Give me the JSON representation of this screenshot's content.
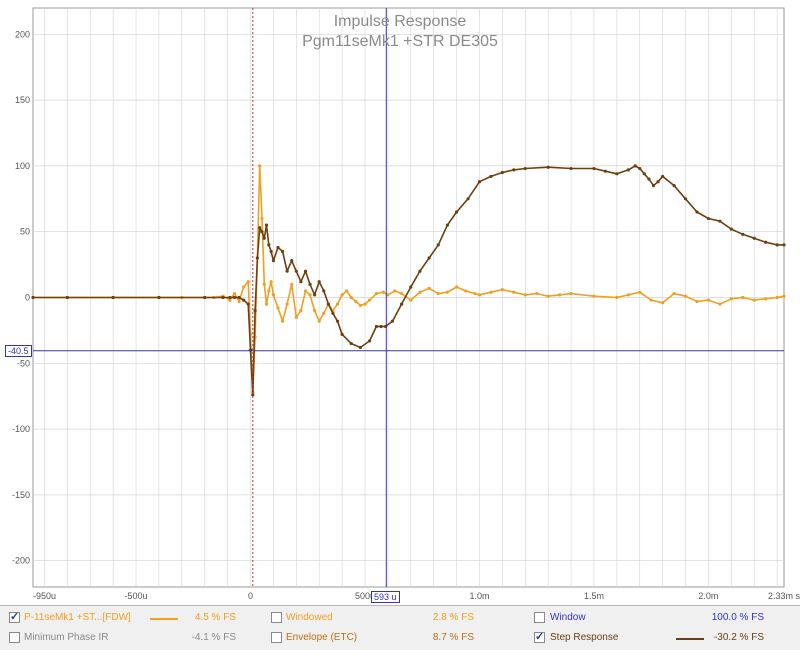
{
  "chart": {
    "title": "Impulse Response",
    "subtitle": "Pgm11seMk1 +STR DE305"
  },
  "cursor": {
    "y_readout": "-40.5",
    "x_readout": "593 u"
  },
  "legend": {
    "row1": [
      {
        "label": "P-11seMk1 +ST...[FDW]",
        "checked": true,
        "color": "#f0a020",
        "value": "4.5 % FS"
      },
      {
        "label": "Windowed",
        "checked": false,
        "color": "#f0a020",
        "value": "2.8 % FS"
      },
      {
        "label": "Window",
        "checked": false,
        "color": "#3333cc",
        "value": "100.0 % FS"
      }
    ],
    "row2": [
      {
        "label": "Minimum Phase IR",
        "checked": false,
        "color": "#8a8a8a",
        "value": "-4.1 % FS"
      },
      {
        "label": "Envelope (ETC)",
        "checked": false,
        "color": "#c07010",
        "value": "8.7 % FS"
      },
      {
        "label": "Step Response",
        "checked": true,
        "color": "#7a4a10",
        "value": "-30.2 % FS"
      }
    ]
  },
  "colors": {
    "ir": "#f0a020",
    "step": "#6b4012",
    "cursor": "#3333bb",
    "zero_marker": "#cc3333",
    "grid": "#d4d4d4"
  },
  "chart_data": {
    "type": "line",
    "title": "Impulse Response",
    "subtitle": "Pgm11seMk1 +STR DE305",
    "xunit": "s",
    "xlim": [
      -0.95,
      2.33
    ],
    "ylim": [
      -220,
      220
    ],
    "x_ticks": [
      {
        "v": -0.95,
        "label": "-950u"
      },
      {
        "v": -0.5,
        "label": "-500u"
      },
      {
        "v": 0,
        "label": "0"
      },
      {
        "v": 0.5,
        "label": "500u"
      },
      {
        "v": 1.0,
        "label": "1.0m"
      },
      {
        "v": 1.5,
        "label": "1.5m"
      },
      {
        "v": 2.0,
        "label": "2.0m"
      },
      {
        "v": 2.33,
        "label": "2.33m s"
      }
    ],
    "y_ticks": [
      {
        "v": 200,
        "label": "200"
      },
      {
        "v": 150,
        "label": "150"
      },
      {
        "v": 100,
        "label": "100"
      },
      {
        "v": 50,
        "label": "50"
      },
      {
        "v": 0,
        "label": "0"
      },
      {
        "v": -50,
        "label": "-50"
      },
      {
        "v": -100,
        "label": "-100"
      },
      {
        "v": -150,
        "label": "-150"
      },
      {
        "v": -200,
        "label": "-200"
      }
    ],
    "cursor_x": 0.593,
    "cursor_y": -40.5,
    "series": [
      {
        "name": "P-11seMk1 +ST...[FDW]",
        "color": "#f0a020",
        "x": [
          -0.95,
          -0.8,
          -0.6,
          -0.4,
          -0.3,
          -0.2,
          -0.16,
          -0.12,
          -0.09,
          -0.07,
          -0.05,
          -0.03,
          -0.01,
          0.0,
          0.01,
          0.02,
          0.03,
          0.04,
          0.05,
          0.06,
          0.07,
          0.08,
          0.09,
          0.1,
          0.12,
          0.14,
          0.16,
          0.18,
          0.2,
          0.22,
          0.24,
          0.26,
          0.28,
          0.3,
          0.32,
          0.34,
          0.36,
          0.38,
          0.4,
          0.42,
          0.44,
          0.46,
          0.48,
          0.5,
          0.52,
          0.55,
          0.58,
          0.6,
          0.63,
          0.66,
          0.7,
          0.74,
          0.78,
          0.82,
          0.86,
          0.9,
          0.94,
          0.98,
          1.0,
          1.05,
          1.1,
          1.15,
          1.2,
          1.25,
          1.3,
          1.35,
          1.4,
          1.5,
          1.6,
          1.65,
          1.7,
          1.75,
          1.8,
          1.85,
          1.9,
          1.95,
          2.0,
          2.05,
          2.1,
          2.15,
          2.2,
          2.25,
          2.3,
          2.33
        ],
        "y": [
          0,
          0,
          0,
          0,
          0,
          0,
          0,
          1,
          -2,
          3,
          -3,
          8,
          12,
          -28,
          -72,
          -30,
          30,
          100,
          60,
          10,
          -5,
          5,
          12,
          2,
          -8,
          -18,
          -5,
          10,
          -15,
          -10,
          5,
          2,
          -10,
          -18,
          -12,
          -5,
          -10,
          -5,
          2,
          5,
          0,
          -3,
          -6,
          -5,
          -2,
          3,
          4,
          2,
          5,
          3,
          -2,
          4,
          7,
          3,
          4,
          8,
          5,
          3,
          2,
          4,
          6,
          4,
          2,
          3,
          1,
          2,
          3,
          1,
          0,
          2,
          4,
          -2,
          -4,
          3,
          1,
          -3,
          -2,
          -5,
          -1,
          0,
          -2,
          -1,
          0,
          1
        ]
      },
      {
        "name": "Step Response",
        "color": "#6b4012",
        "x": [
          -0.95,
          -0.8,
          -0.6,
          -0.4,
          -0.2,
          -0.12,
          -0.09,
          -0.07,
          -0.05,
          -0.03,
          -0.01,
          0.0,
          0.01,
          0.02,
          0.03,
          0.04,
          0.05,
          0.06,
          0.07,
          0.08,
          0.09,
          0.1,
          0.12,
          0.14,
          0.16,
          0.18,
          0.2,
          0.22,
          0.24,
          0.26,
          0.28,
          0.3,
          0.32,
          0.34,
          0.36,
          0.38,
          0.4,
          0.44,
          0.48,
          0.52,
          0.55,
          0.57,
          0.59,
          0.62,
          0.66,
          0.7,
          0.74,
          0.78,
          0.82,
          0.86,
          0.9,
          0.95,
          1.0,
          1.05,
          1.1,
          1.15,
          1.2,
          1.3,
          1.4,
          1.5,
          1.55,
          1.6,
          1.65,
          1.68,
          1.7,
          1.72,
          1.74,
          1.76,
          1.78,
          1.8,
          1.85,
          1.9,
          1.95,
          2.0,
          2.05,
          2.1,
          2.15,
          2.2,
          2.25,
          2.3,
          2.33
        ],
        "y": [
          0,
          0,
          0,
          0,
          0,
          0,
          0,
          0,
          0,
          -2,
          -5,
          -40,
          -74,
          -10,
          30,
          53,
          50,
          45,
          55,
          40,
          35,
          28,
          38,
          35,
          20,
          28,
          20,
          12,
          20,
          10,
          2,
          12,
          5,
          -5,
          -12,
          -18,
          -28,
          -35,
          -38,
          -33,
          -22,
          -22,
          -22,
          -18,
          -5,
          8,
          20,
          30,
          40,
          55,
          65,
          75,
          88,
          92,
          95,
          97,
          98,
          99,
          98,
          98,
          96,
          94,
          97,
          100,
          98,
          94,
          90,
          85,
          88,
          92,
          85,
          75,
          65,
          60,
          58,
          52,
          48,
          45,
          42,
          40,
          40
        ]
      }
    ]
  }
}
